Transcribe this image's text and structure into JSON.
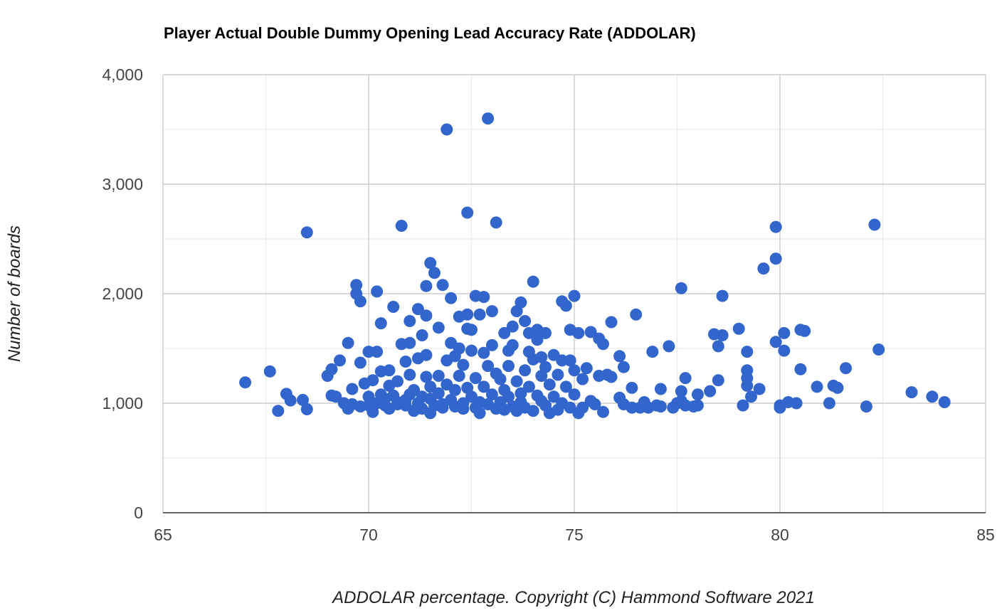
{
  "chart_data": {
    "type": "scatter",
    "title": "Player Actual Double Dummy Opening Lead Accuracy Rate (ADDOLAR)",
    "xlabel": "ADDOLAR percentage. Copyright (C) Hammond Software 2021",
    "ylabel": "Number of boards",
    "xlim": [
      65,
      85
    ],
    "ylim": [
      0,
      4000
    ],
    "x_ticks": [
      "65",
      "70",
      "75",
      "80",
      "85"
    ],
    "y_ticks": [
      "0",
      "1,000",
      "2,000",
      "3,000",
      "4,000"
    ],
    "grid": true,
    "legend": "none",
    "point_color": "#3366cc",
    "series": [
      {
        "points": [
          [
            67.0,
            1190
          ],
          [
            67.6,
            1290
          ],
          [
            67.8,
            930
          ],
          [
            68.0,
            1085
          ],
          [
            68.1,
            1025
          ],
          [
            68.4,
            1030
          ],
          [
            68.5,
            945
          ],
          [
            68.5,
            2560
          ],
          [
            69.0,
            1250
          ],
          [
            69.1,
            1070
          ],
          [
            69.1,
            1310
          ],
          [
            69.2,
            1060
          ],
          [
            69.3,
            1390
          ],
          [
            69.4,
            1000
          ],
          [
            69.5,
            950
          ],
          [
            69.5,
            1550
          ],
          [
            69.6,
            990
          ],
          [
            69.6,
            1130
          ],
          [
            69.7,
            2000
          ],
          [
            69.7,
            2080
          ],
          [
            69.8,
            1930
          ],
          [
            69.8,
            1370
          ],
          [
            69.8,
            970
          ],
          [
            69.9,
            1180
          ],
          [
            70.0,
            1060
          ],
          [
            70.0,
            980
          ],
          [
            70.0,
            1470
          ],
          [
            70.1,
            920
          ],
          [
            70.1,
            1210
          ],
          [
            70.2,
            2020
          ],
          [
            70.2,
            1470
          ],
          [
            70.2,
            1000
          ],
          [
            70.3,
            1290
          ],
          [
            70.3,
            1730
          ],
          [
            70.3,
            1080
          ],
          [
            70.4,
            980
          ],
          [
            70.4,
            1040
          ],
          [
            70.5,
            950
          ],
          [
            70.5,
            1300
          ],
          [
            70.5,
            1160
          ],
          [
            70.6,
            1880
          ],
          [
            70.6,
            1070
          ],
          [
            70.7,
            1010
          ],
          [
            70.7,
            990
          ],
          [
            70.7,
            1200
          ],
          [
            70.8,
            1540
          ],
          [
            70.8,
            2620
          ],
          [
            70.9,
            1030
          ],
          [
            70.9,
            980
          ],
          [
            70.9,
            1380
          ],
          [
            71.0,
            1260
          ],
          [
            71.0,
            1080
          ],
          [
            71.0,
            1750
          ],
          [
            71.0,
            1550
          ],
          [
            71.1,
            930
          ],
          [
            71.1,
            1120
          ],
          [
            71.2,
            1860
          ],
          [
            71.2,
            1000
          ],
          [
            71.2,
            1410
          ],
          [
            71.3,
            1620
          ],
          [
            71.3,
            1060
          ],
          [
            71.3,
            950
          ],
          [
            71.4,
            1800
          ],
          [
            71.4,
            1240
          ],
          [
            71.4,
            2070
          ],
          [
            71.4,
            1440
          ],
          [
            71.5,
            910
          ],
          [
            71.5,
            1040
          ],
          [
            71.5,
            2280
          ],
          [
            71.5,
            1150
          ],
          [
            71.6,
            2190
          ],
          [
            71.6,
            980
          ],
          [
            71.7,
            1690
          ],
          [
            71.7,
            1250
          ],
          [
            71.7,
            1090
          ],
          [
            71.8,
            990
          ],
          [
            71.8,
            2080
          ],
          [
            71.8,
            960
          ],
          [
            71.9,
            1390
          ],
          [
            71.9,
            1170
          ],
          [
            71.9,
            3500
          ],
          [
            72.0,
            1550
          ],
          [
            72.0,
            1960
          ],
          [
            72.0,
            1030
          ],
          [
            72.1,
            1430
          ],
          [
            72.1,
            1120
          ],
          [
            72.1,
            970
          ],
          [
            72.2,
            1790
          ],
          [
            72.2,
            1500
          ],
          [
            72.2,
            1250
          ],
          [
            72.3,
            1000
          ],
          [
            72.3,
            1350
          ],
          [
            72.3,
            950
          ],
          [
            72.4,
            1810
          ],
          [
            72.4,
            1680
          ],
          [
            72.4,
            2740
          ],
          [
            72.4,
            1140
          ],
          [
            72.5,
            1480
          ],
          [
            72.5,
            1060
          ],
          [
            72.5,
            1670
          ],
          [
            72.6,
            1980
          ],
          [
            72.6,
            1230
          ],
          [
            72.6,
            960
          ],
          [
            72.7,
            1810
          ],
          [
            72.7,
            1010
          ],
          [
            72.7,
            910
          ],
          [
            72.8,
            1970
          ],
          [
            72.8,
            1460
          ],
          [
            72.8,
            1150
          ],
          [
            72.9,
            3600
          ],
          [
            72.9,
            1340
          ],
          [
            72.9,
            990
          ],
          [
            73.0,
            1840
          ],
          [
            73.0,
            1530
          ],
          [
            73.0,
            1080
          ],
          [
            73.1,
            2650
          ],
          [
            73.1,
            1270
          ],
          [
            73.1,
            950
          ],
          [
            73.2,
            1220
          ],
          [
            73.2,
            1010
          ],
          [
            73.3,
            1640
          ],
          [
            73.3,
            1120
          ],
          [
            73.3,
            940
          ],
          [
            73.4,
            1480
          ],
          [
            73.4,
            1340
          ],
          [
            73.4,
            1060
          ],
          [
            73.5,
            1700
          ],
          [
            73.5,
            1530
          ],
          [
            73.5,
            970
          ],
          [
            73.6,
            1840
          ],
          [
            73.6,
            1200
          ],
          [
            73.6,
            930
          ],
          [
            73.7,
            1920
          ],
          [
            73.7,
            1090
          ],
          [
            73.7,
            1010
          ],
          [
            73.8,
            1300
          ],
          [
            73.8,
            1750
          ],
          [
            73.8,
            960
          ],
          [
            73.9,
            1640
          ],
          [
            73.9,
            1470
          ],
          [
            73.9,
            1150
          ],
          [
            74.0,
            2110
          ],
          [
            74.0,
            1400
          ],
          [
            74.0,
            930
          ],
          [
            74.1,
            1670
          ],
          [
            74.1,
            1580
          ],
          [
            74.1,
            1070
          ],
          [
            74.2,
            1250
          ],
          [
            74.2,
            1020
          ],
          [
            74.2,
            1420
          ],
          [
            74.3,
            1640
          ],
          [
            74.3,
            980
          ],
          [
            74.3,
            1330
          ],
          [
            74.4,
            910
          ],
          [
            74.4,
            1170
          ],
          [
            74.5,
            1440
          ],
          [
            74.5,
            1060
          ],
          [
            74.6,
            1260
          ],
          [
            74.6,
            940
          ],
          [
            74.7,
            1930
          ],
          [
            74.7,
            1390
          ],
          [
            74.7,
            1000
          ],
          [
            74.8,
            1890
          ],
          [
            74.8,
            1150
          ],
          [
            74.9,
            1670
          ],
          [
            74.9,
            1390
          ],
          [
            74.9,
            960
          ],
          [
            75.0,
            1980
          ],
          [
            75.0,
            1300
          ],
          [
            75.0,
            1080
          ],
          [
            75.1,
            1640
          ],
          [
            75.1,
            910
          ],
          [
            75.2,
            1220
          ],
          [
            75.2,
            960
          ],
          [
            75.3,
            1320
          ],
          [
            75.4,
            1650
          ],
          [
            75.4,
            1020
          ],
          [
            75.5,
            990
          ],
          [
            75.6,
            1250
          ],
          [
            75.6,
            1590
          ],
          [
            75.7,
            1540
          ],
          [
            75.7,
            920
          ],
          [
            75.8,
            1260
          ],
          [
            75.9,
            1740
          ],
          [
            75.9,
            1240
          ],
          [
            76.1,
            1430
          ],
          [
            76.1,
            1050
          ],
          [
            76.2,
            1330
          ],
          [
            76.2,
            990
          ],
          [
            76.4,
            1140
          ],
          [
            76.4,
            960
          ],
          [
            76.5,
            1810
          ],
          [
            76.6,
            960
          ],
          [
            76.7,
            1010
          ],
          [
            76.8,
            960
          ],
          [
            76.9,
            1470
          ],
          [
            77.0,
            980
          ],
          [
            77.1,
            1130
          ],
          [
            77.1,
            970
          ],
          [
            77.3,
            1520
          ],
          [
            77.4,
            960
          ],
          [
            77.5,
            1000
          ],
          [
            77.6,
            1020
          ],
          [
            77.6,
            2050
          ],
          [
            77.6,
            1110
          ],
          [
            77.7,
            980
          ],
          [
            77.7,
            1230
          ],
          [
            77.9,
            970
          ],
          [
            78.0,
            980
          ],
          [
            78.0,
            1080
          ],
          [
            78.3,
            1110
          ],
          [
            78.4,
            1630
          ],
          [
            78.5,
            1210
          ],
          [
            78.5,
            1520
          ],
          [
            78.6,
            1620
          ],
          [
            78.6,
            1980
          ],
          [
            79.0,
            1680
          ],
          [
            79.1,
            980
          ],
          [
            79.2,
            1300
          ],
          [
            79.2,
            1230
          ],
          [
            79.2,
            1160
          ],
          [
            79.2,
            1470
          ],
          [
            79.3,
            1060
          ],
          [
            79.5,
            1130
          ],
          [
            79.6,
            2230
          ],
          [
            79.9,
            2320
          ],
          [
            79.9,
            2610
          ],
          [
            79.9,
            1560
          ],
          [
            80.0,
            960
          ],
          [
            80.0,
            980
          ],
          [
            80.1,
            1640
          ],
          [
            80.1,
            1480
          ],
          [
            80.2,
            1010
          ],
          [
            80.4,
            1000
          ],
          [
            80.5,
            1310
          ],
          [
            80.5,
            1670
          ],
          [
            80.6,
            1660
          ],
          [
            80.9,
            1150
          ],
          [
            81.2,
            1000
          ],
          [
            81.3,
            1160
          ],
          [
            81.4,
            1140
          ],
          [
            81.6,
            1320
          ],
          [
            82.1,
            970
          ],
          [
            82.3,
            2630
          ],
          [
            82.4,
            1490
          ],
          [
            83.2,
            1100
          ],
          [
            83.7,
            1060
          ],
          [
            84.0,
            1010
          ]
        ]
      }
    ]
  }
}
